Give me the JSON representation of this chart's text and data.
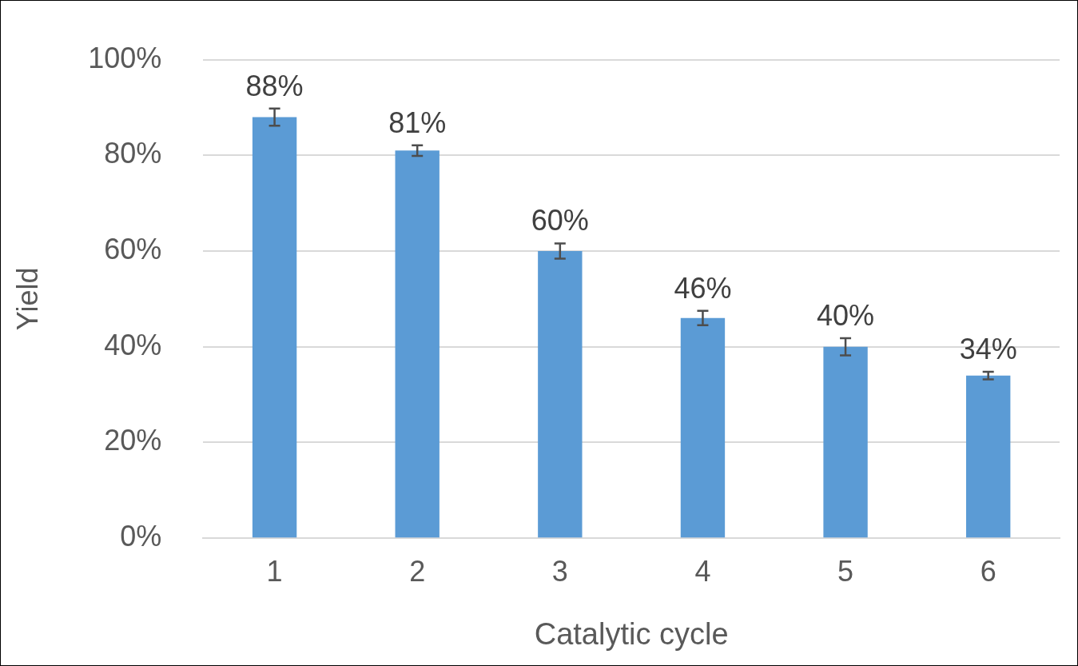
{
  "chart_data": {
    "type": "bar",
    "xlabel": "Catalytic cycle",
    "ylabel": "Yield",
    "categories": [
      "1",
      "2",
      "3",
      "4",
      "5",
      "6"
    ],
    "values": [
      88,
      81,
      60,
      46,
      40,
      34
    ],
    "errors": [
      1.8,
      1.1,
      1.6,
      1.5,
      1.8,
      0.8
    ],
    "value_labels": [
      "88%",
      "81%",
      "60%",
      "46%",
      "40%",
      "34%"
    ],
    "color": "#5b9bd5",
    "ylim": [
      0,
      100
    ],
    "yticks": [
      {
        "value": 0,
        "label": "0%"
      },
      {
        "value": 20,
        "label": "20%"
      },
      {
        "value": 40,
        "label": "40%"
      },
      {
        "value": 60,
        "label": "60%"
      },
      {
        "value": 80,
        "label": "80%"
      },
      {
        "value": 100,
        "label": "100%"
      }
    ],
    "grid": "y",
    "legend": false
  }
}
